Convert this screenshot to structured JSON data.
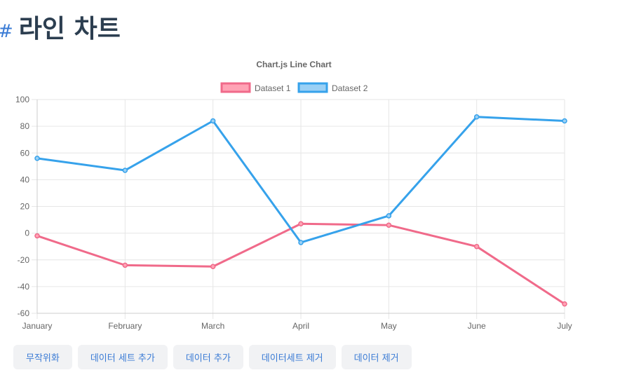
{
  "page": {
    "heading_prefix": "#",
    "heading": "라인 차트"
  },
  "chart_data": {
    "type": "line",
    "title": "Chart.js Line Chart",
    "categories": [
      "January",
      "February",
      "March",
      "April",
      "May",
      "June",
      "July"
    ],
    "ylim": [
      -60,
      100
    ],
    "yticks": [
      100,
      80,
      60,
      40,
      20,
      0,
      -20,
      -40,
      -60
    ],
    "grid": true,
    "legend_position": "top",
    "series": [
      {
        "name": "Dataset 1",
        "color": "#f06a8a",
        "fill": "#ffa3b5",
        "values": [
          -2,
          -24,
          -25,
          7,
          6,
          -10,
          -53
        ]
      },
      {
        "name": "Dataset 2",
        "color": "#36a2eb",
        "fill": "#9ad0f5",
        "values": [
          56,
          47,
          84,
          -7,
          13,
          87,
          84
        ]
      }
    ]
  },
  "toolbar": {
    "buttons": [
      "무작위화",
      "데이터 세트 추가",
      "데이터 추가",
      "데이터세트 제거",
      "데이터 제거"
    ]
  }
}
